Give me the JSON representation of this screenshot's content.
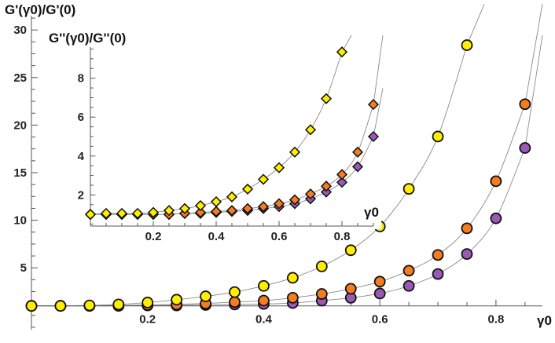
{
  "chart_data": [
    {
      "type": "scatter",
      "role": "main",
      "ylabel": "G'(γ0)/G'(0)",
      "xlabel": "γ0",
      "xlim": [
        0,
        0.88
      ],
      "ylim": [
        -1.5,
        31.5
      ],
      "xticks": [
        "0.2",
        "0.4",
        "0.6",
        "0.8"
      ],
      "yticks": [
        "5",
        "10",
        "15",
        "20",
        "25",
        "30"
      ],
      "marker": "circle",
      "grid": false,
      "series": [
        {
          "color": "#9b59b6",
          "x": [
            0.0,
            0.05,
            0.1,
            0.15,
            0.2,
            0.25,
            0.3,
            0.35,
            0.4,
            0.45,
            0.5,
            0.55,
            0.6,
            0.65,
            0.7,
            0.75,
            0.8,
            0.85
          ],
          "y": [
            1.0,
            1.0,
            1.0,
            1.0,
            1.05,
            1.05,
            1.1,
            1.15,
            1.2,
            1.3,
            1.55,
            1.85,
            2.3,
            3.1,
            4.35,
            6.45,
            10.2,
            17.6
          ]
        },
        {
          "color": "#f57c20",
          "x": [
            0.0,
            0.05,
            0.1,
            0.15,
            0.2,
            0.25,
            0.3,
            0.35,
            0.4,
            0.45,
            0.5,
            0.55,
            0.6,
            0.65,
            0.7,
            0.75,
            0.8,
            0.85
          ],
          "y": [
            1.0,
            1.0,
            1.0,
            1.05,
            1.1,
            1.15,
            1.25,
            1.4,
            1.55,
            1.85,
            2.25,
            2.8,
            3.55,
            4.7,
            6.35,
            9.15,
            14.1,
            22.2
          ]
        },
        {
          "color": "#ffee00",
          "x": [
            0.0,
            0.05,
            0.1,
            0.15,
            0.2,
            0.25,
            0.3,
            0.35,
            0.4,
            0.45,
            0.5,
            0.55,
            0.6,
            0.65,
            0.7,
            0.75
          ],
          "y": [
            1.0,
            1.0,
            1.05,
            1.15,
            1.35,
            1.65,
            2.0,
            2.45,
            3.1,
            3.95,
            5.15,
            6.85,
            9.35,
            13.3,
            18.8,
            28.4
          ]
        }
      ]
    },
    {
      "type": "scatter",
      "role": "inset",
      "ylabel": "G''(γ0)/G''(0)",
      "xlabel": "γ0",
      "xlim": [
        0,
        0.9
      ],
      "ylim": [
        0.4,
        9.6
      ],
      "xticks": [
        "0.2",
        "0.4",
        "0.6",
        "0.8"
      ],
      "yticks": [
        "2",
        "4",
        "6",
        "8"
      ],
      "marker": "diamond",
      "grid": false,
      "series": [
        {
          "color": "#9b59b6",
          "x": [
            0.0,
            0.05,
            0.1,
            0.15,
            0.2,
            0.25,
            0.3,
            0.35,
            0.4,
            0.45,
            0.5,
            0.55,
            0.6,
            0.65,
            0.7,
            0.75,
            0.8,
            0.85,
            0.9
          ],
          "y": [
            1.0,
            1.0,
            1.0,
            1.0,
            1.0,
            1.0,
            1.05,
            1.05,
            1.1,
            1.15,
            1.2,
            1.3,
            1.4,
            1.55,
            1.8,
            2.15,
            2.65,
            3.45,
            5.0
          ]
        },
        {
          "color": "#f57c20",
          "x": [
            0.0,
            0.05,
            0.1,
            0.15,
            0.2,
            0.25,
            0.3,
            0.35,
            0.4,
            0.45,
            0.5,
            0.55,
            0.6,
            0.65,
            0.7,
            0.75,
            0.8,
            0.85,
            0.9
          ],
          "y": [
            1.0,
            1.0,
            1.0,
            1.0,
            1.0,
            1.0,
            1.05,
            1.1,
            1.15,
            1.2,
            1.3,
            1.4,
            1.55,
            1.75,
            2.05,
            2.45,
            3.05,
            4.2,
            6.65
          ]
        },
        {
          "color": "#ffee00",
          "x": [
            0.0,
            0.05,
            0.1,
            0.15,
            0.2,
            0.25,
            0.3,
            0.35,
            0.4,
            0.45,
            0.5,
            0.55,
            0.6,
            0.65,
            0.7,
            0.75,
            0.8
          ],
          "y": [
            1.0,
            1.05,
            1.05,
            1.05,
            1.1,
            1.2,
            1.3,
            1.45,
            1.65,
            1.9,
            2.3,
            2.8,
            3.4,
            4.2,
            5.35,
            6.95,
            9.35
          ]
        }
      ]
    }
  ]
}
